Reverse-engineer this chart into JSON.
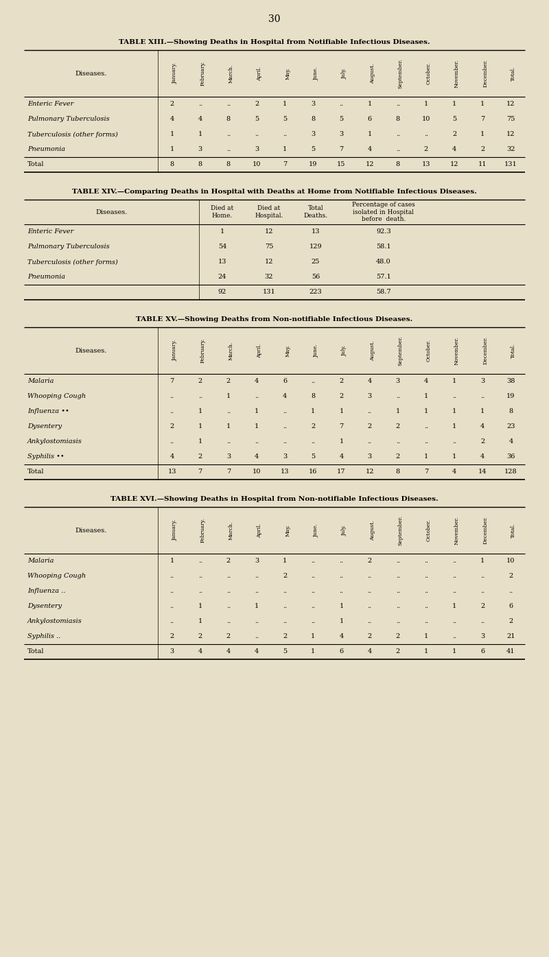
{
  "bg_color": "#e8dfc8",
  "page_num": "30",
  "table13": {
    "title": "TABLE XIII.—Showing Deaths in Hospital from Notifiable Infectious Diseases.",
    "months": [
      "January.",
      "February.",
      "March.",
      "April.",
      "May.",
      "June.",
      "July.",
      "August.",
      "September.",
      "October.",
      "November.",
      "December.",
      "Total."
    ],
    "diseases": [
      "Enteric Fever",
      "Pulmonary Tuberculosis",
      "Tuberculosis (other forms)",
      "Pneumonia",
      "Total"
    ],
    "data": [
      [
        "2",
        "..",
        "..",
        "2",
        "1",
        "3",
        "..",
        "1",
        "..",
        "1",
        "1",
        "1",
        "12"
      ],
      [
        "4",
        "4",
        "8",
        "5",
        "5",
        "8",
        "5",
        "6",
        "8",
        "10",
        "5",
        "7",
        "75"
      ],
      [
        "1",
        "1",
        "..",
        "..",
        "..",
        "3",
        "3",
        "1",
        "..",
        "..",
        "2",
        "1",
        "12"
      ],
      [
        "1",
        "3",
        "..",
        "3",
        "1",
        "5",
        "7",
        "4",
        "..",
        "2",
        "4",
        "2",
        "32"
      ],
      [
        "8",
        "8",
        "8",
        "10",
        "7",
        "19",
        "15",
        "12",
        "8",
        "13",
        "12",
        "11",
        "131"
      ]
    ],
    "is_total": [
      false,
      false,
      false,
      false,
      true
    ]
  },
  "table14": {
    "title": "TABLE XIV.—Comparing Deaths in Hospital with Deaths at Home from Notifiable Infectious Diseases.",
    "col_headers": [
      "Diseases.",
      "Died at\nHome.",
      "Died at\nHospital.",
      "Total\nDeaths.",
      "Percentage of cases\nisolated in Hospital\nbefore  death."
    ],
    "diseases": [
      "Enteric Fever",
      "Pulmonary Tuberculosis",
      "Tuberculosis (other forms)",
      "Pneumonia",
      ""
    ],
    "data": [
      [
        "1",
        "12",
        "13",
        "92.3"
      ],
      [
        "54",
        "75",
        "129",
        "58.1"
      ],
      [
        "13",
        "12",
        "25",
        "48.0"
      ],
      [
        "24",
        "32",
        "56",
        "57.1"
      ],
      [
        "92",
        "131",
        "223",
        "58.7"
      ]
    ],
    "is_total": [
      false,
      false,
      false,
      false,
      true
    ]
  },
  "table15": {
    "title": "TABLE XV.—Showing Deaths from Non-notifiable Infectious Diseases.",
    "months": [
      "January.",
      "February.",
      "March.",
      "April.",
      "May.",
      "June.",
      "July.",
      "August.",
      "September.",
      "October.",
      "November.",
      "December.",
      "Total."
    ],
    "diseases": [
      "Malaria",
      "Whooping Cough",
      "Influenza ••",
      "Dysentery",
      "Ankylostomiasis",
      "Syphilis ••",
      "Total"
    ],
    "data": [
      [
        "7",
        "2",
        "2",
        "4",
        "6",
        "..",
        "2",
        "4",
        "3",
        "4",
        "1",
        "3",
        "38"
      ],
      [
        "..",
        "..",
        "1",
        "..",
        "4",
        "8",
        "2",
        "3",
        "..",
        "1",
        "..",
        "..",
        "19"
      ],
      [
        "..",
        "1",
        "..",
        "1",
        "..",
        "1",
        "1",
        "..",
        "1",
        "1",
        "1",
        "1",
        "8"
      ],
      [
        "2",
        "1",
        "1",
        "1",
        "..",
        "2",
        "7",
        "2",
        "2",
        "..",
        "1",
        "4",
        "23"
      ],
      [
        "..",
        "1",
        "..",
        "..",
        "..",
        "..",
        "1",
        "..",
        "..",
        "..",
        "..",
        "2",
        "4"
      ],
      [
        "4",
        "2",
        "3",
        "4",
        "3",
        "5",
        "4",
        "3",
        "2",
        "1",
        "1",
        "4",
        "36"
      ],
      [
        "13",
        "7",
        "7",
        "10",
        "13",
        "16",
        "17",
        "12",
        "8",
        "7",
        "4",
        "14",
        "128"
      ]
    ],
    "is_total": [
      false,
      false,
      false,
      false,
      false,
      false,
      true
    ]
  },
  "table16": {
    "title": "TABLE XVI.—Showing Deaths in Hospital from Non-notifiable Infectious Diseases.",
    "months": [
      "January.",
      "February.",
      "March.",
      "April.",
      "May.",
      "June.",
      "July.",
      "August.",
      "September.",
      "October.",
      "November.",
      "December.",
      "Total."
    ],
    "diseases": [
      "Malaria",
      "Whooping Cough",
      "Influenza ..",
      "Dysentery",
      "Ankylostomiasis",
      "Syphilis ..",
      "Total"
    ],
    "data": [
      [
        "1",
        "..",
        "2",
        "3",
        "1",
        "..",
        "..",
        "2",
        "..",
        "..",
        "..",
        "1",
        "10"
      ],
      [
        "..",
        "..",
        "..",
        "..",
        "2",
        "..",
        "..",
        "..",
        "..",
        "..",
        "..",
        "..",
        "2"
      ],
      [
        "..",
        "..",
        "..",
        "..",
        "..",
        "..",
        "..",
        "..",
        "..",
        "..",
        "..",
        "..",
        ".."
      ],
      [
        "..",
        "1",
        "..",
        "1",
        "..",
        "..",
        "1",
        "..",
        "..",
        "..",
        "1",
        "2",
        "6"
      ],
      [
        "..",
        "1",
        "..",
        "..",
        "..",
        "..",
        "1",
        "..",
        "..",
        "..",
        "..",
        "..",
        "2"
      ],
      [
        "2",
        "2",
        "2",
        "..",
        "2",
        "1",
        "4",
        "2",
        "2",
        "1",
        "..",
        "3",
        "21"
      ],
      [
        "3",
        "4",
        "4",
        "4",
        "5",
        "1",
        "6",
        "4",
        "2",
        "1",
        "1",
        "6",
        "41"
      ]
    ],
    "is_total": [
      false,
      false,
      false,
      false,
      false,
      false,
      true
    ]
  }
}
